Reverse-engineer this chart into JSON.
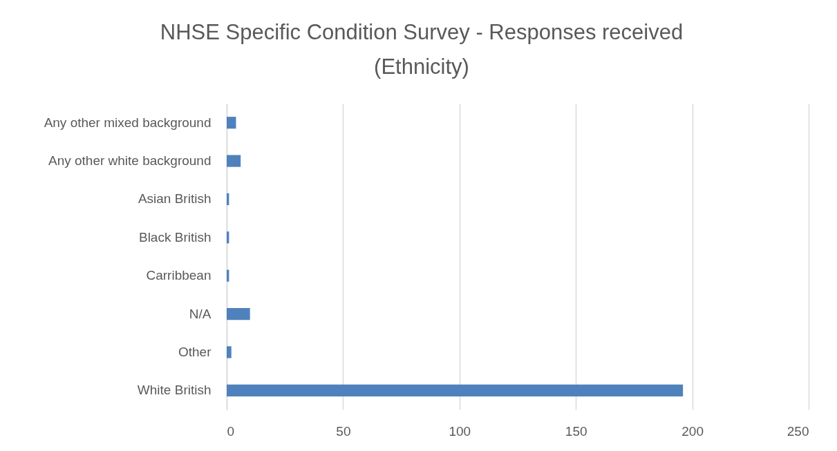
{
  "chart_data": {
    "type": "bar",
    "orientation": "horizontal",
    "title": "NHSE Specific Condition Survey - Responses received\n(Ethnicity)",
    "categories": [
      "Any other mixed background",
      "Any other white background",
      "Asian British",
      "Black British",
      "Carribbean",
      "N/A",
      "Other",
      "White British"
    ],
    "values": [
      4,
      6,
      1,
      1,
      1,
      10,
      2,
      196
    ],
    "color": "#4f81bd",
    "xlim": [
      0,
      250
    ],
    "xticks": [
      0,
      50,
      100,
      150,
      200,
      250
    ],
    "grid": "x"
  }
}
